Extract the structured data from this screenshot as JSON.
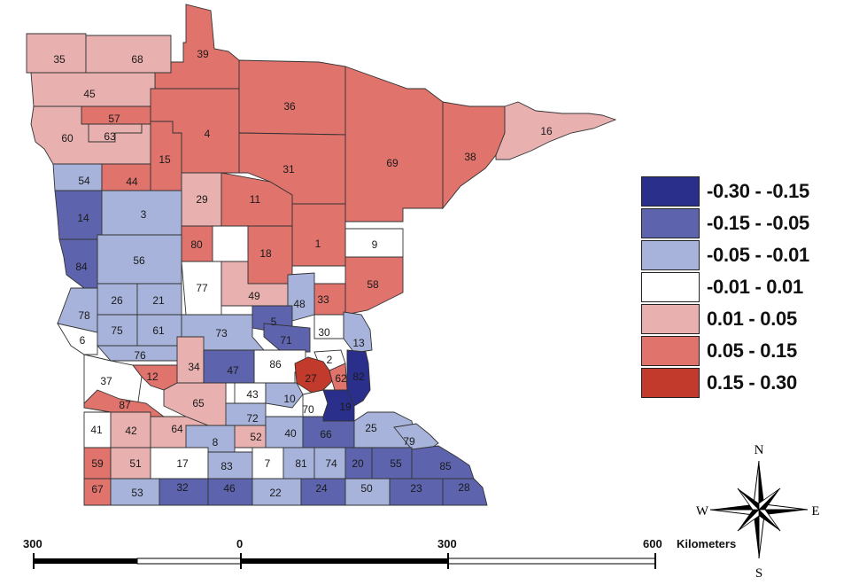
{
  "legend": [
    {
      "label": "-0.30 - -0.15",
      "color": "#2b2f8c"
    },
    {
      "label": "-0.15 - -0.05",
      "color": "#5d64ad"
    },
    {
      "label": "-0.05 - -0.01",
      "color": "#a7b3db"
    },
    {
      "label": "-0.01 - 0.01",
      "color": "#ffffff"
    },
    {
      "label": "0.01 - 0.05",
      "color": "#e9b0b0"
    },
    {
      "label": "0.05 - 0.15",
      "color": "#e0736c"
    },
    {
      "label": "0.15 - 0.30",
      "color": "#c23a2c"
    }
  ],
  "counties": [
    {
      "id": "35",
      "class": 4
    },
    {
      "id": "68",
      "class": 4
    },
    {
      "id": "39",
      "class": 5
    },
    {
      "id": "45",
      "class": 4
    },
    {
      "id": "57",
      "class": 5
    },
    {
      "id": "63",
      "class": 4
    },
    {
      "id": "60",
      "class": 4
    },
    {
      "id": "4",
      "class": 5
    },
    {
      "id": "36",
      "class": 5
    },
    {
      "id": "69",
      "class": 5
    },
    {
      "id": "38",
      "class": 5
    },
    {
      "id": "16",
      "class": 4
    },
    {
      "id": "15",
      "class": 5
    },
    {
      "id": "31",
      "class": 5
    },
    {
      "id": "54",
      "class": 2
    },
    {
      "id": "44",
      "class": 5
    },
    {
      "id": "29",
      "class": 4
    },
    {
      "id": "11",
      "class": 5
    },
    {
      "id": "14",
      "class": 1
    },
    {
      "id": "3",
      "class": 2
    },
    {
      "id": "9",
      "class": 3
    },
    {
      "id": "80",
      "class": 5
    },
    {
      "id": "1",
      "class": 5
    },
    {
      "id": "18",
      "class": 5
    },
    {
      "id": "56",
      "class": 2
    },
    {
      "id": "84",
      "class": 1
    },
    {
      "id": "77",
      "class": 3
    },
    {
      "id": "58",
      "class": 5
    },
    {
      "id": "49",
      "class": 4
    },
    {
      "id": "33",
      "class": 5
    },
    {
      "id": "48",
      "class": 2
    },
    {
      "id": "26",
      "class": 2
    },
    {
      "id": "21",
      "class": 2
    },
    {
      "id": "78",
      "class": 2
    },
    {
      "id": "5",
      "class": 1
    },
    {
      "id": "6",
      "class": 3
    },
    {
      "id": "75",
      "class": 2
    },
    {
      "id": "61",
      "class": 2
    },
    {
      "id": "73",
      "class": 2
    },
    {
      "id": "30",
      "class": 3
    },
    {
      "id": "13",
      "class": 2
    },
    {
      "id": "71",
      "class": 1
    },
    {
      "id": "76",
      "class": 2
    },
    {
      "id": "34",
      "class": 4
    },
    {
      "id": "86",
      "class": 3
    },
    {
      "id": "2",
      "class": 3
    },
    {
      "id": "37",
      "class": 3
    },
    {
      "id": "12",
      "class": 5
    },
    {
      "id": "47",
      "class": 1
    },
    {
      "id": "27",
      "class": 6
    },
    {
      "id": "62",
      "class": 5
    },
    {
      "id": "82",
      "class": 0
    },
    {
      "id": "43",
      "class": 3
    },
    {
      "id": "10",
      "class": 2
    },
    {
      "id": "87",
      "class": 5
    },
    {
      "id": "65",
      "class": 4
    },
    {
      "id": "70",
      "class": 3
    },
    {
      "id": "19",
      "class": 0
    },
    {
      "id": "72",
      "class": 2
    },
    {
      "id": "41",
      "class": 3
    },
    {
      "id": "42",
      "class": 4
    },
    {
      "id": "64",
      "class": 4
    },
    {
      "id": "52",
      "class": 4
    },
    {
      "id": "40",
      "class": 2
    },
    {
      "id": "66",
      "class": 1
    },
    {
      "id": "25",
      "class": 2
    },
    {
      "id": "79",
      "class": 2
    },
    {
      "id": "8",
      "class": 2
    },
    {
      "id": "59",
      "class": 5
    },
    {
      "id": "51",
      "class": 4
    },
    {
      "id": "17",
      "class": 3
    },
    {
      "id": "83",
      "class": 2
    },
    {
      "id": "7",
      "class": 3
    },
    {
      "id": "81",
      "class": 2
    },
    {
      "id": "74",
      "class": 2
    },
    {
      "id": "20",
      "class": 1
    },
    {
      "id": "55",
      "class": 1
    },
    {
      "id": "85",
      "class": 1
    },
    {
      "id": "67",
      "class": 5
    },
    {
      "id": "53",
      "class": 2
    },
    {
      "id": "32",
      "class": 1
    },
    {
      "id": "46",
      "class": 1
    },
    {
      "id": "22",
      "class": 2
    },
    {
      "id": "24",
      "class": 1
    },
    {
      "id": "50",
      "class": 2
    },
    {
      "id": "23",
      "class": 1
    },
    {
      "id": "28",
      "class": 1
    }
  ],
  "scale": {
    "ticks": [
      "300",
      "0",
      "300",
      "600"
    ],
    "unit": "Kilometers"
  },
  "compass": {
    "n": "N",
    "s": "S",
    "e": "E",
    "w": "W"
  }
}
